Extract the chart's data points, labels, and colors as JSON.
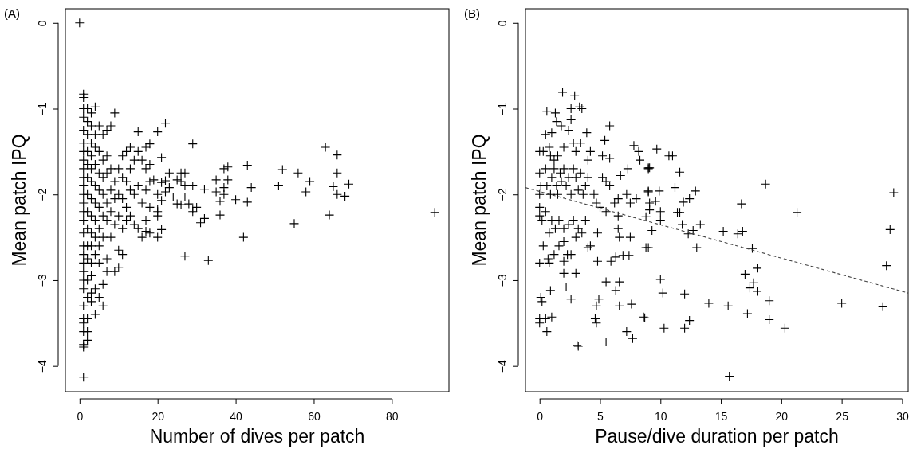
{
  "chart_data": [
    {
      "type": "scatter",
      "title": "(A)",
      "xlabel": "Number of dives per patch",
      "ylabel": "Mean patch IPQ",
      "marker": "cross",
      "xlim": [
        -3.64,
        94.64
      ],
      "ylim": [
        -4.3,
        0.165
      ],
      "xticks": [
        0,
        20,
        40,
        60,
        80
      ],
      "yticks": [
        0,
        -1,
        -2,
        -3,
        -4
      ],
      "grid": false,
      "series": [
        {
          "color": "#000000",
          "x": [
            0,
            1,
            1,
            1,
            1,
            1,
            1,
            1,
            1,
            1,
            1,
            1,
            1,
            1,
            1,
            1,
            1,
            1,
            1,
            1,
            1,
            1,
            1,
            1,
            1,
            1,
            1,
            1,
            1,
            1,
            2,
            2,
            2,
            2,
            2,
            2,
            2,
            2,
            2,
            2,
            2,
            2,
            2,
            2,
            2,
            2,
            3,
            3,
            3,
            3,
            3,
            3,
            3,
            3,
            3,
            3,
            3,
            3,
            3,
            3,
            4,
            4,
            4,
            4,
            4,
            4,
            4,
            4,
            4,
            4,
            4,
            5,
            5,
            5,
            5,
            5,
            5,
            5,
            5,
            5,
            6,
            6,
            6,
            6,
            6,
            6,
            6,
            6,
            7,
            7,
            7,
            7,
            7,
            7,
            7,
            8,
            8,
            8,
            8,
            8,
            9,
            9,
            9,
            9,
            9,
            10,
            10,
            10,
            10,
            10,
            11,
            11,
            11,
            11,
            11,
            12,
            12,
            12,
            12,
            13,
            13,
            13,
            13,
            14,
            14,
            14,
            15,
            15,
            15,
            15,
            16,
            16,
            16,
            17,
            17,
            17,
            17,
            18,
            18,
            18,
            18,
            20,
            22,
            29,
            21,
            18,
            37,
            38,
            43,
            52,
            56,
            63,
            66,
            66,
            59,
            51,
            58,
            65,
            69,
            66,
            68,
            44,
            40,
            43,
            36,
            36,
            64,
            91,
            55,
            42,
            27,
            33,
            23,
            26,
            27,
            25,
            26,
            27,
            29,
            32,
            35,
            38,
            37,
            35,
            37,
            22,
            23,
            21,
            22,
            24,
            27,
            25,
            26,
            28,
            29,
            30,
            29,
            31,
            32,
            20,
            20,
            20,
            21,
            20,
            17,
            19,
            20,
            21
          ],
          "values": [
            0,
            -0.83,
            -0.87,
            -1.0,
            -1.1,
            -1.25,
            -1.4,
            -1.5,
            -1.6,
            -1.7,
            -1.8,
            -1.9,
            -2.0,
            -2.1,
            -2.2,
            -2.3,
            -2.45,
            -2.6,
            -2.7,
            -2.8,
            -2.9,
            -3.0,
            -3.1,
            -3.3,
            -3.45,
            -3.5,
            -3.6,
            -3.75,
            -3.78,
            -4.13,
            -1.0,
            -1.15,
            -1.3,
            -1.5,
            -1.65,
            -1.8,
            -2.0,
            -2.2,
            -2.4,
            -2.6,
            -2.75,
            -3.0,
            -3.2,
            -3.45,
            -3.6,
            -3.7,
            -1.05,
            -1.2,
            -1.4,
            -1.55,
            -1.7,
            -1.85,
            -2.05,
            -2.25,
            -2.45,
            -2.6,
            -2.8,
            -2.95,
            -3.15,
            -3.25,
            -0.98,
            -1.3,
            -1.45,
            -1.65,
            -1.9,
            -2.1,
            -2.3,
            -2.5,
            -2.7,
            -3.1,
            -3.4,
            -1.2,
            -1.5,
            -1.75,
            -1.95,
            -2.15,
            -2.4,
            -2.6,
            -2.8,
            -3.2,
            -1.3,
            -1.6,
            -1.8,
            -2.0,
            -2.25,
            -2.5,
            -3.05,
            -3.3,
            -1.25,
            -1.55,
            -1.75,
            -2.1,
            -2.3,
            -2.75,
            -2.9,
            -1.2,
            -1.7,
            -1.95,
            -2.2,
            -2.5,
            -1.05,
            -1.85,
            -2.05,
            -2.35,
            -2.9,
            -1.7,
            -2.0,
            -2.25,
            -2.65,
            -2.85,
            -1.55,
            -1.8,
            -2.05,
            -2.4,
            -2.7,
            -1.5,
            -1.85,
            -2.15,
            -2.3,
            -1.45,
            -1.7,
            -1.95,
            -2.25,
            -1.6,
            -2.0,
            -2.35,
            -1.27,
            -1.5,
            -1.9,
            -2.4,
            -1.6,
            -2.1,
            -2.5,
            -1.45,
            -1.7,
            -1.95,
            -2.3,
            -1.65,
            -1.85,
            -2.15,
            -2.45,
            -1.27,
            -1.17,
            -1.41,
            -1.57,
            -1.41,
            -1.7,
            -1.68,
            -1.66,
            -1.71,
            -1.75,
            -1.45,
            -1.54,
            -1.75,
            -1.85,
            -1.9,
            -1.97,
            -1.91,
            -1.88,
            -2.0,
            -2.02,
            -1.92,
            -2.06,
            -2.09,
            -2.08,
            -2.24,
            -2.24,
            -2.21,
            -2.34,
            -2.5,
            -2.72,
            -2.77,
            -1.75,
            -1.75,
            -1.75,
            -1.83,
            -1.85,
            -1.9,
            -1.9,
            -1.94,
            -1.83,
            -1.83,
            -1.92,
            -1.97,
            -2.0,
            -1.84,
            -1.92,
            -1.86,
            -1.97,
            -2.03,
            -2.03,
            -2.11,
            -2.12,
            -2.11,
            -2.17,
            -2.15,
            -2.2,
            -2.33,
            -2.28,
            -2.17,
            -2.2,
            -2.25,
            -2.41,
            -2.5,
            -2.43,
            -1.83,
            -2.0,
            -2.07
          ]
        }
      ]
    },
    {
      "type": "scatter",
      "title": "(B)",
      "xlabel": "Pause/dive duration per patch",
      "ylabel": "Mean patch IPQ",
      "marker": "cross",
      "xlim": [
        -1.17,
        30.5
      ],
      "ylim": [
        -4.3,
        0.165
      ],
      "xticks": [
        0,
        5,
        10,
        15,
        20,
        25,
        30
      ],
      "yticks": [
        0,
        -1,
        -2,
        -3,
        -4
      ],
      "grid": false,
      "series": [
        {
          "color": "#000000",
          "x": [
            1.9,
            2.9,
            2.6,
            3.3,
            3.5,
            0.6,
            1.3,
            1.4,
            1.8,
            2.6,
            2.4,
            1.0,
            0.5,
            0.3,
            0.8,
            0.9,
            1.2,
            1.5,
            2.0,
            2.8,
            3.0,
            3.4,
            3.9,
            4.2,
            4.0,
            5.8,
            5.4,
            5.2,
            5.8,
            6.7,
            7.3,
            7.8,
            8.2,
            8.3,
            9.0,
            0.0,
            0.0,
            0.1,
            0.0,
            0.0,
            0.0,
            0.5,
            0.6,
            0.9,
            1.0,
            1.2,
            1.4,
            1.5,
            1.7,
            1.8,
            2.0,
            2.2,
            2.4,
            2.6,
            2.8,
            3.0,
            3.2,
            3.4,
            3.6,
            3.8,
            4.0,
            4.5,
            4.7,
            5.2,
            5.5,
            5.8,
            6.2,
            6.5,
            7.2,
            7.5,
            8.0,
            9.0,
            0.2,
            0.5,
            0.8,
            1.0,
            1.3,
            1.6,
            2.0,
            2.4,
            2.8,
            3.2,
            3.5,
            3.8,
            4.8,
            5.0,
            5.5,
            6.5,
            6.6,
            7.5,
            6.5,
            0.3,
            0.7,
            1.2,
            1.6,
            2.0,
            2.3,
            2.6,
            3.0,
            4.0,
            4.2,
            8.8,
            0.0,
            0.8,
            2.0,
            4.8,
            5.9,
            6.3,
            6.9,
            7.4,
            2.0,
            3.0,
            5.5,
            6.6,
            6.3,
            2.2,
            0.9,
            0.1,
            0.2,
            2.6,
            4.9,
            4.7,
            6.6,
            7.6,
            0.0,
            0.0,
            0.5,
            1.0,
            0.6,
            4.6,
            4.7,
            8.7,
            7.2,
            7.7,
            5.5,
            3.2,
            3.1,
            9.7,
            10.7,
            11.0,
            11.6,
            9.0,
            9.1,
            11.2,
            9.0,
            9.9,
            12.9,
            12.4,
            11.9,
            9.1,
            9.6,
            9.1,
            10.0,
            11.4,
            11.6,
            8.8,
            10.0,
            11.8,
            13.3,
            9.3,
            12.7,
            12.3,
            15.2,
            16.4,
            16.8,
            18.7,
            16.7,
            21.3,
            29.3,
            29.0,
            9.0,
            13.0,
            17.6,
            28.7,
            18.0,
            17.0,
            10.0,
            17.7,
            17.4,
            18.0,
            10.2,
            12.0,
            14.0,
            15.6,
            19.0,
            25.0,
            28.4,
            8.6,
            17.2,
            12.4,
            19.0,
            10.3,
            12.0,
            20.3,
            15.7
          ],
          "values": [
            -0.81,
            -0.85,
            -1.0,
            -0.98,
            -1.0,
            -1.03,
            -1.05,
            -1.15,
            -1.2,
            -1.13,
            -1.25,
            -1.28,
            -1.3,
            -1.5,
            -1.45,
            -1.55,
            -1.6,
            -1.55,
            -1.45,
            -1.4,
            -1.5,
            -1.4,
            -1.28,
            -1.5,
            -1.6,
            -1.2,
            -1.37,
            -1.55,
            -1.58,
            -1.78,
            -1.7,
            -1.43,
            -1.5,
            -1.6,
            -1.7,
            -1.5,
            -1.75,
            -1.9,
            -2.0,
            -2.15,
            -2.25,
            -1.7,
            -1.9,
            -2.0,
            -1.8,
            -1.7,
            -1.9,
            -2.0,
            -1.75,
            -1.85,
            -1.7,
            -1.9,
            -1.8,
            -2.0,
            -1.7,
            -1.8,
            -1.95,
            -1.75,
            -2.0,
            -1.9,
            -1.8,
            -2.0,
            -2.1,
            -1.8,
            -1.85,
            -1.9,
            -2.1,
            -2.05,
            -2.0,
            -2.1,
            -2.05,
            -1.97,
            -2.3,
            -2.2,
            -2.45,
            -2.3,
            -2.4,
            -2.3,
            -2.4,
            -2.35,
            -2.3,
            -2.4,
            -2.45,
            -2.3,
            -2.45,
            -2.15,
            -2.2,
            -2.25,
            -2.5,
            -2.5,
            -2.4,
            -2.6,
            -2.75,
            -2.7,
            -2.6,
            -2.55,
            -2.7,
            -2.7,
            -2.5,
            -2.62,
            -2.6,
            -2.62,
            -2.8,
            -2.8,
            -2.78,
            -2.78,
            -2.78,
            -2.73,
            -2.71,
            -2.71,
            -2.92,
            -2.92,
            -3.02,
            -3.02,
            -3.12,
            -3.08,
            -3.12,
            -3.2,
            -3.25,
            -3.22,
            -3.22,
            -3.3,
            -3.3,
            -3.28,
            -3.45,
            -3.5,
            -3.45,
            -3.43,
            -3.6,
            -3.45,
            -3.5,
            -3.44,
            -3.6,
            -3.68,
            -3.72,
            -3.77,
            -3.76,
            -1.47,
            -1.55,
            -1.55,
            -1.74,
            -1.69,
            -1.69,
            -1.92,
            -1.96,
            -1.96,
            -1.96,
            -2.05,
            -2.09,
            -2.1,
            -2.08,
            -2.18,
            -2.2,
            -2.21,
            -2.21,
            -2.26,
            -2.3,
            -2.35,
            -2.35,
            -2.42,
            -2.42,
            -2.46,
            -2.43,
            -2.46,
            -2.43,
            -1.88,
            -2.11,
            -2.21,
            -1.98,
            -2.41,
            -2.62,
            -2.62,
            -2.63,
            -2.83,
            -2.86,
            -2.93,
            -2.99,
            -3.03,
            -3.09,
            -3.13,
            -3.15,
            -3.16,
            -3.27,
            -3.3,
            -3.24,
            -3.27,
            -3.31,
            -3.43,
            -3.39,
            -3.47,
            -3.46,
            -3.56,
            -3.56,
            -3.56,
            -4.12
          ]
        },
        {
          "type": "line",
          "color": "#444444",
          "line_style": "dashed",
          "marker": "none",
          "x": [
            -1.17,
            30.5
          ],
          "values": [
            -1.92,
            -3.15
          ]
        }
      ]
    }
  ]
}
